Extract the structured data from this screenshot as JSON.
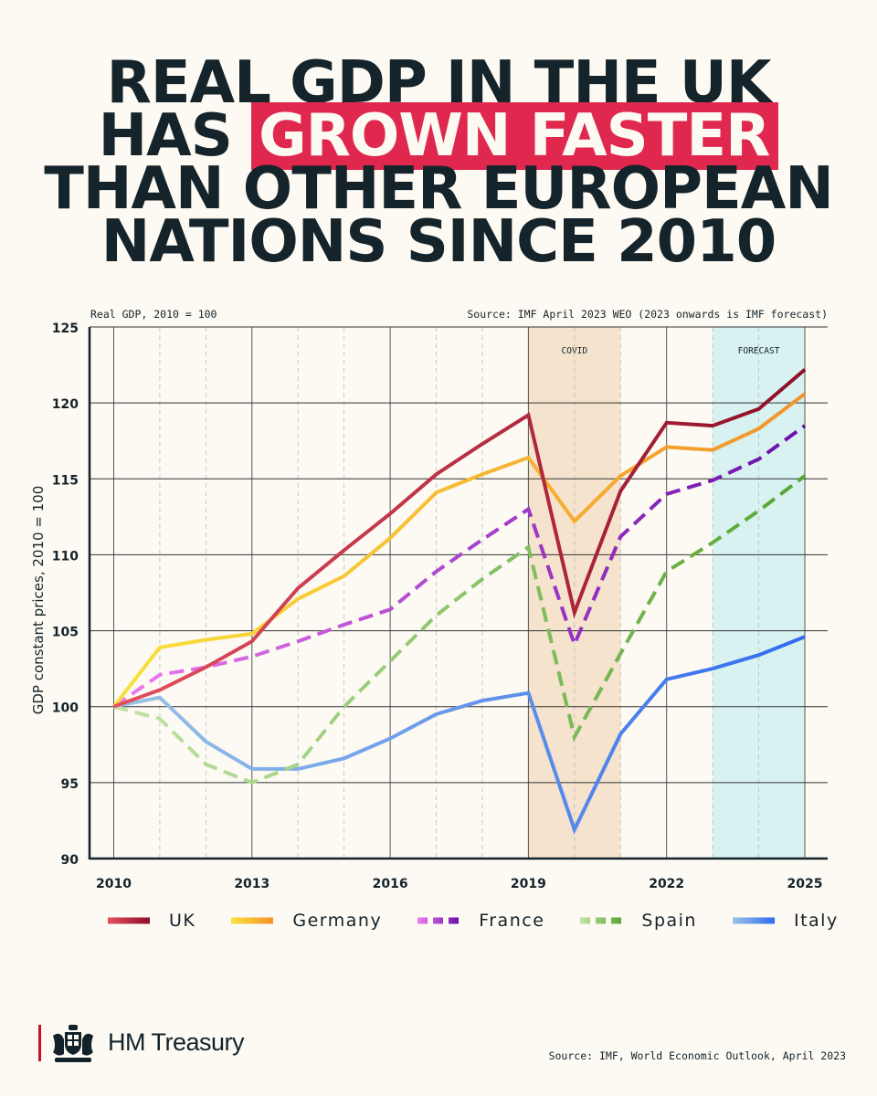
{
  "headline": {
    "line1": "REAL GDP IN THE UK",
    "line2_pre": "HAS",
    "line2_highlight": "GROWN FASTER",
    "line3": "THAN OTHER EUROPEAN",
    "line4": "NATIONS SINCE 2010"
  },
  "chart_data": {
    "type": "line",
    "subtitle_left": "Real GDP, 2010 = 100",
    "subtitle_right": "Source: IMF April 2023 WEO (2023 onwards is IMF forecast)",
    "ylabel": "GDP constant prices, 2010 = 100",
    "xlabel": "",
    "xlim": [
      2009.5,
      2025
    ],
    "ylim": [
      90,
      125
    ],
    "yticks": [
      90,
      95,
      100,
      105,
      110,
      115,
      120,
      125
    ],
    "xticks": [
      2010,
      2013,
      2016,
      2019,
      2022,
      2025
    ],
    "x": [
      2010,
      2011,
      2012,
      2013,
      2014,
      2015,
      2016,
      2017,
      2018,
      2019,
      2020,
      2021,
      2022,
      2023,
      2024,
      2025
    ],
    "bands": [
      {
        "label": "COVID",
        "from": 2019,
        "to": 2021,
        "color": "#f5e3cd"
      },
      {
        "label": "FORECAST",
        "from": 2023,
        "to": 2025,
        "color": "#d7f2f1"
      }
    ],
    "series": [
      {
        "name": "UK",
        "dashed": false,
        "color_start": "#e55060",
        "color_end": "#8e0f27",
        "values": [
          100,
          101.1,
          102.6,
          104.3,
          107.8,
          110.3,
          112.7,
          115.3,
          117.3,
          119.2,
          106.2,
          114.2,
          118.7,
          118.5,
          119.6,
          122.2
        ]
      },
      {
        "name": "Germany",
        "dashed": false,
        "color_start": "#f8e23b",
        "color_end": "#f4922a",
        "values": [
          100,
          103.9,
          104.4,
          104.8,
          107.1,
          108.6,
          111.1,
          114.1,
          115.3,
          116.4,
          112.2,
          115.2,
          117.1,
          116.9,
          118.3,
          120.6
        ]
      },
      {
        "name": "France",
        "dashed": true,
        "color_start": "#ee7cf0",
        "color_end": "#6a0dab",
        "values": [
          100,
          102.1,
          102.6,
          103.3,
          104.3,
          105.4,
          106.4,
          108.9,
          111.0,
          113.0,
          104.1,
          111.2,
          114.0,
          114.9,
          116.3,
          118.5
        ]
      },
      {
        "name": "Spain",
        "dashed": true,
        "color_start": "#c4e3a6",
        "color_end": "#55a531",
        "values": [
          100,
          99.2,
          96.2,
          95.0,
          96.2,
          100.0,
          103.0,
          106.0,
          108.4,
          110.5,
          98.0,
          103.5,
          108.9,
          110.8,
          112.9,
          115.2
        ]
      },
      {
        "name": "Italy",
        "dashed": false,
        "color_start": "#9cc3e6",
        "color_end": "#2f6bef",
        "values": [
          100,
          100.6,
          97.7,
          95.9,
          95.9,
          96.6,
          97.9,
          99.5,
          100.4,
          100.9,
          91.9,
          98.2,
          101.8,
          102.5,
          103.4,
          104.6
        ]
      }
    ]
  },
  "legend": [
    {
      "label": "UK"
    },
    {
      "label": "Germany"
    },
    {
      "label": "France"
    },
    {
      "label": "Spain"
    },
    {
      "label": "Italy"
    }
  ],
  "footer": {
    "org": "HM Treasury",
    "source": "Source: IMF, World Economic Outlook, April 2023"
  }
}
